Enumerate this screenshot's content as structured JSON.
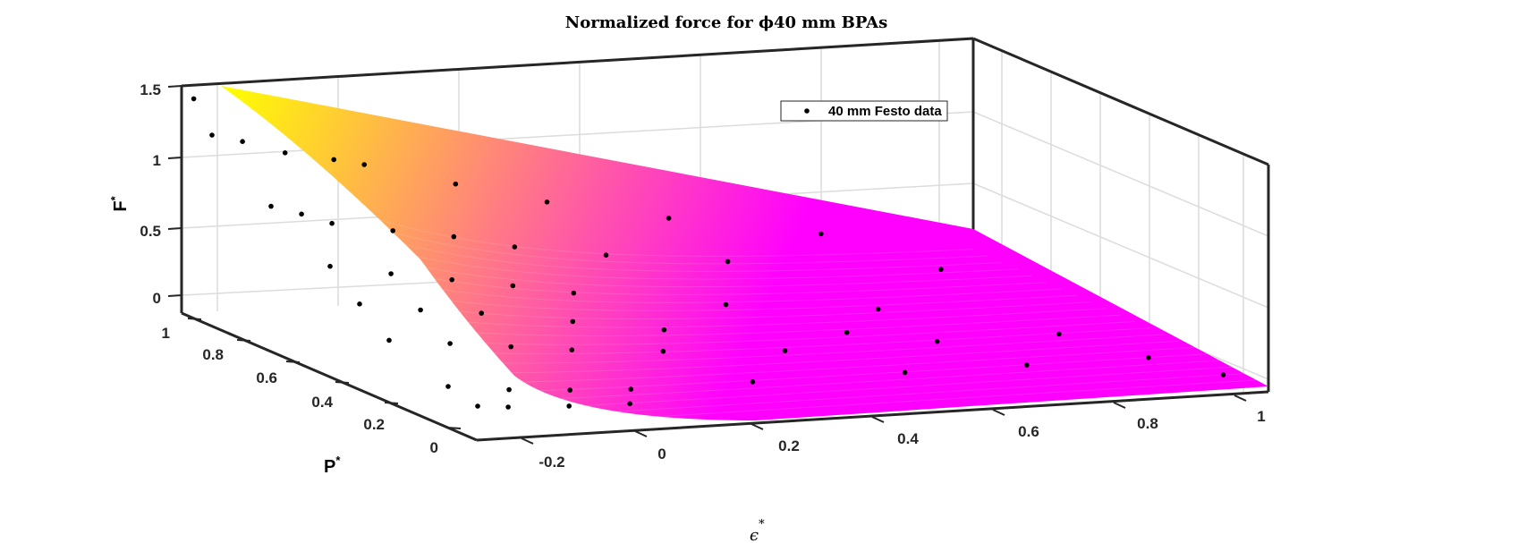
{
  "chart_data": {
    "type": "surface3d",
    "title": "Normalized force for ϕ40 mm BPAs",
    "xlabel": "ϵ",
    "ylabel": "P",
    "zlabel": "F",
    "label_sup": "*",
    "legend": {
      "label": "40 mm Festo data",
      "position": "top-right"
    },
    "xlim": [
      -0.25,
      1.05
    ],
    "ylim": [
      0,
      1
    ],
    "zlim": [
      -0.1,
      1.5
    ],
    "xticks": [
      "-0.2",
      "0",
      "0.2",
      "0.4",
      "0.6",
      "0.8",
      "1"
    ],
    "yticks": [
      "0",
      "0.2",
      "0.4",
      "0.6",
      "0.8",
      "1"
    ],
    "zticks": [
      "0",
      "0.5",
      "1",
      "1.5"
    ],
    "colormap": [
      "#ff00ff",
      "#ffff00"
    ],
    "grid": true,
    "data_points": [
      {
        "x": -0.23,
        "y": 1.0,
        "z": 1.45
      },
      {
        "x": -0.2,
        "y": 1.0,
        "z": 1.18
      },
      {
        "x": -0.15,
        "y": 1.0,
        "z": 1.12
      },
      {
        "x": -0.08,
        "y": 1.0,
        "z": 1.02
      },
      {
        "x": 0.0,
        "y": 1.0,
        "z": 0.95
      },
      {
        "x": 0.05,
        "y": 1.0,
        "z": 0.9
      },
      {
        "x": 0.2,
        "y": 1.0,
        "z": 0.72
      },
      {
        "x": 0.35,
        "y": 1.0,
        "z": 0.55
      },
      {
        "x": 0.55,
        "y": 1.0,
        "z": 0.38
      },
      {
        "x": 0.8,
        "y": 1.0,
        "z": 0.2
      },
      {
        "x": -0.2,
        "y": 0.8,
        "z": 0.85
      },
      {
        "x": -0.15,
        "y": 0.8,
        "z": 0.78
      },
      {
        "x": -0.1,
        "y": 0.8,
        "z": 0.7
      },
      {
        "x": 0.0,
        "y": 0.8,
        "z": 0.62
      },
      {
        "x": 0.1,
        "y": 0.8,
        "z": 0.55
      },
      {
        "x": 0.2,
        "y": 0.8,
        "z": 0.45
      },
      {
        "x": 0.35,
        "y": 0.8,
        "z": 0.35
      },
      {
        "x": 0.55,
        "y": 0.8,
        "z": 0.25
      },
      {
        "x": -0.2,
        "y": 0.6,
        "z": 0.6
      },
      {
        "x": -0.1,
        "y": 0.6,
        "z": 0.52
      },
      {
        "x": 0.0,
        "y": 0.6,
        "z": 0.45
      },
      {
        "x": 0.1,
        "y": 0.6,
        "z": 0.38
      },
      {
        "x": 0.2,
        "y": 0.6,
        "z": 0.3
      },
      {
        "x": 0.45,
        "y": 0.6,
        "z": 0.15
      },
      {
        "x": 0.7,
        "y": 0.6,
        "z": 0.05
      },
      {
        "x": -0.2,
        "y": 0.5,
        "z": 0.42
      },
      {
        "x": -0.1,
        "y": 0.5,
        "z": 0.35
      },
      {
        "x": 0.0,
        "y": 0.5,
        "z": 0.3
      },
      {
        "x": 0.15,
        "y": 0.5,
        "z": 0.2
      },
      {
        "x": 0.3,
        "y": 0.5,
        "z": 0.1
      },
      {
        "x": 0.6,
        "y": 0.5,
        "z": 0.0
      },
      {
        "x": -0.2,
        "y": 0.4,
        "z": 0.25
      },
      {
        "x": -0.1,
        "y": 0.4,
        "z": 0.2
      },
      {
        "x": 0.0,
        "y": 0.4,
        "z": 0.15
      },
      {
        "x": 0.1,
        "y": 0.4,
        "z": 0.1
      },
      {
        "x": 0.25,
        "y": 0.4,
        "z": 0.05
      },
      {
        "x": 0.45,
        "y": 0.4,
        "z": 0.0
      },
      {
        "x": 0.7,
        "y": 0.4,
        "z": 0.0
      },
      {
        "x": 0.9,
        "y": 0.4,
        "z": 0.0
      },
      {
        "x": -0.2,
        "y": 0.2,
        "z": 0.1
      },
      {
        "x": -0.1,
        "y": 0.2,
        "z": 0.05
      },
      {
        "x": 0.0,
        "y": 0.2,
        "z": 0.02
      },
      {
        "x": 0.1,
        "y": 0.2,
        "z": 0.0
      },
      {
        "x": 0.3,
        "y": 0.2,
        "z": 0.0
      },
      {
        "x": 0.55,
        "y": 0.2,
        "z": 0.0
      },
      {
        "x": 0.75,
        "y": 0.2,
        "z": 0.0
      },
      {
        "x": 0.95,
        "y": 0.2,
        "z": 0.0
      },
      {
        "x": -0.2,
        "y": 0.1,
        "z": 0.05
      },
      {
        "x": -0.15,
        "y": 0.1,
        "z": 0.03
      },
      {
        "x": -0.05,
        "y": 0.1,
        "z": 0.01
      },
      {
        "x": 0.05,
        "y": 0.1,
        "z": 0.0
      },
      {
        "x": 0.9,
        "y": 0.8,
        "z": 0.1
      },
      {
        "x": 1.0,
        "y": 0.05,
        "z": 0.0
      }
    ]
  }
}
